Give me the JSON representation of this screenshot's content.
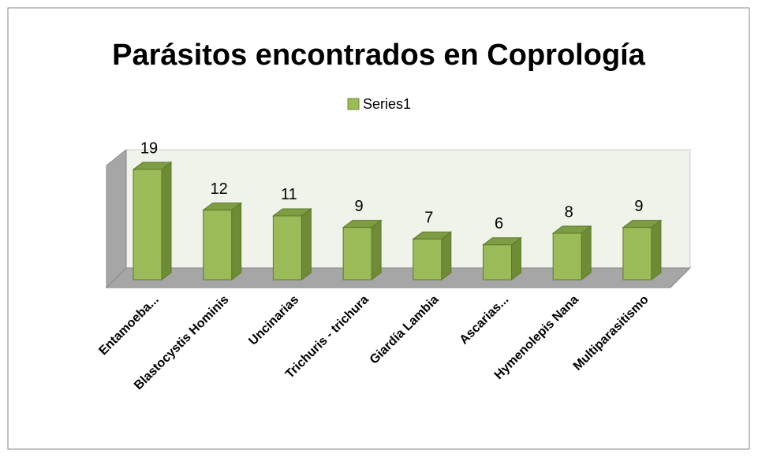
{
  "chart_data": {
    "type": "bar",
    "title": "Parásitos encontrados en Coprología",
    "categories": [
      "Entamoeba...",
      "Blastocystis Hominis",
      "Uncinarias",
      "Trichuris - trichura",
      "Giardía Lambia",
      "Ascarias...",
      "Hymenolepis Nana",
      "Multiparasitismo"
    ],
    "series": [
      {
        "name": "Series1",
        "color": "#9bbb59",
        "values": [
          19,
          12,
          11,
          9,
          7,
          6,
          8,
          9
        ]
      }
    ],
    "legend": "top"
  }
}
